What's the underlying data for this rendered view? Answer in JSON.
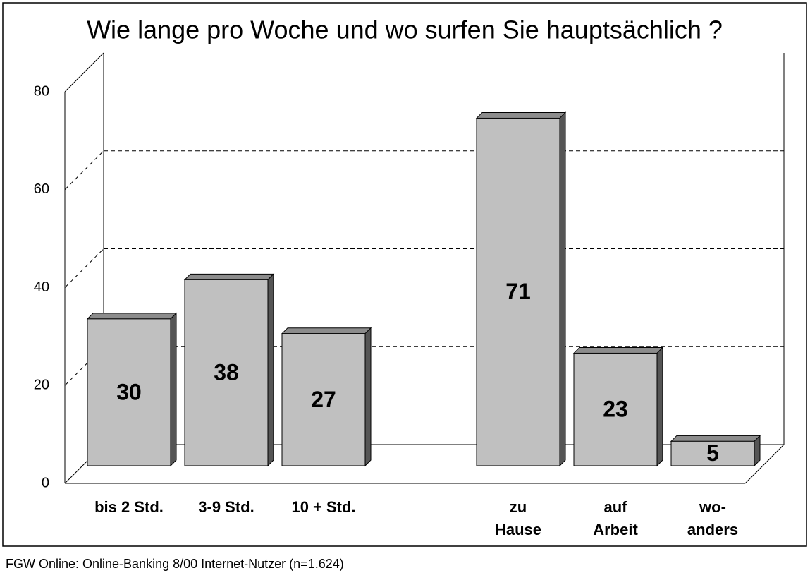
{
  "chart_data": {
    "type": "bar3d",
    "title": "Wie lange pro Woche und wo surfen Sie hauptsächlich ?",
    "categories": [
      "bis 2 Std.",
      "3-9 Std.",
      "10 + Std.",
      null,
      "zu\nHause",
      "auf\nArbeit",
      "wo-\nanders"
    ],
    "values": [
      30,
      38,
      27,
      null,
      71,
      23,
      5
    ],
    "color": "#c0c0c0",
    "ylim": [
      0,
      80
    ],
    "yticks": [
      0,
      20,
      40,
      60,
      80
    ],
    "grid": true,
    "source": "FGW Online: Online-Banking 8/00 Internet-Nutzer (n=1.624)"
  }
}
